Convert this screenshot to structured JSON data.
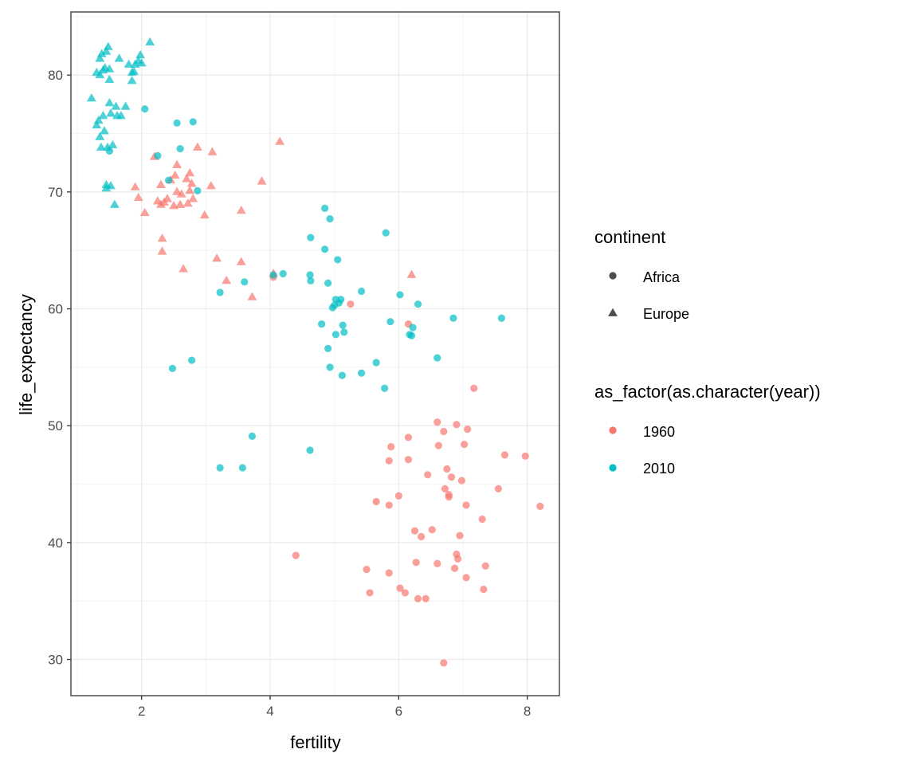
{
  "chart_data": {
    "type": "scatter",
    "xlabel": "fertility",
    "ylabel": "life_expectancy",
    "xlim": [
      0.9,
      8.5
    ],
    "ylim": [
      26.9,
      85.4
    ],
    "xticks": [
      2,
      4,
      6,
      8
    ],
    "yticks": [
      30,
      40,
      50,
      60,
      70,
      80
    ],
    "grid": true,
    "legend_position": "right",
    "legends": [
      {
        "title": "continent",
        "kind": "shape",
        "entries": [
          {
            "label": "Africa",
            "shape": "circle"
          },
          {
            "label": "Europe",
            "shape": "triangle"
          }
        ]
      },
      {
        "title": "as_factor(as.character(year))",
        "kind": "color",
        "entries": [
          {
            "label": "1960",
            "color": "#F8766D"
          },
          {
            "label": "2010",
            "color": "#00BFC4"
          }
        ]
      }
    ],
    "colors": {
      "1960": "#F8766D",
      "2010": "#00BFC4"
    },
    "series": [
      {
        "name": "1960",
        "continent": "Africa",
        "points": [
          [
            4.4,
            38.9
          ],
          [
            5.25,
            60.4
          ],
          [
            4.05,
            62.7
          ],
          [
            5.5,
            37.7
          ],
          [
            5.55,
            35.7
          ],
          [
            5.65,
            43.5
          ],
          [
            5.85,
            37.4
          ],
          [
            5.85,
            47.0
          ],
          [
            5.88,
            48.2
          ],
          [
            5.85,
            43.2
          ],
          [
            6.0,
            44.0
          ],
          [
            6.02,
            36.1
          ],
          [
            6.1,
            35.7
          ],
          [
            6.15,
            49.0
          ],
          [
            6.15,
            47.1
          ],
          [
            6.15,
            58.7
          ],
          [
            6.25,
            41.0
          ],
          [
            6.27,
            38.3
          ],
          [
            6.3,
            35.2
          ],
          [
            6.35,
            40.5
          ],
          [
            6.42,
            35.2
          ],
          [
            6.45,
            45.8
          ],
          [
            6.52,
            41.1
          ],
          [
            6.6,
            38.2
          ],
          [
            6.6,
            50.3
          ],
          [
            6.62,
            48.3
          ],
          [
            6.7,
            49.5
          ],
          [
            6.72,
            44.6
          ],
          [
            6.75,
            46.3
          ],
          [
            6.78,
            44.1
          ],
          [
            6.78,
            43.9
          ],
          [
            6.82,
            45.6
          ],
          [
            6.87,
            37.8
          ],
          [
            6.9,
            39.0
          ],
          [
            6.9,
            50.1
          ],
          [
            6.92,
            38.6
          ],
          [
            6.95,
            40.6
          ],
          [
            6.98,
            45.3
          ],
          [
            7.02,
            48.4
          ],
          [
            7.05,
            37.0
          ],
          [
            7.05,
            43.2
          ],
          [
            7.07,
            49.7
          ],
          [
            7.17,
            53.2
          ],
          [
            7.3,
            42.0
          ],
          [
            7.32,
            36.0
          ],
          [
            7.35,
            38.0
          ],
          [
            7.55,
            44.6
          ],
          [
            7.65,
            47.5
          ],
          [
            7.97,
            47.4
          ],
          [
            8.2,
            43.1
          ],
          [
            6.7,
            29.7
          ]
        ]
      },
      {
        "name": "1960",
        "continent": "Europe",
        "points": [
          [
            1.9,
            70.4
          ],
          [
            1.95,
            69.5
          ],
          [
            2.05,
            68.2
          ],
          [
            2.2,
            73.0
          ],
          [
            2.25,
            69.2
          ],
          [
            2.3,
            70.6
          ],
          [
            2.3,
            68.9
          ],
          [
            2.32,
            66.0
          ],
          [
            2.32,
            64.9
          ],
          [
            2.35,
            69.1
          ],
          [
            2.4,
            69.4
          ],
          [
            2.45,
            71.0
          ],
          [
            2.5,
            68.8
          ],
          [
            2.52,
            71.4
          ],
          [
            2.55,
            72.3
          ],
          [
            2.55,
            70.0
          ],
          [
            2.6,
            68.9
          ],
          [
            2.62,
            69.8
          ],
          [
            2.65,
            63.4
          ],
          [
            2.7,
            71.1
          ],
          [
            2.72,
            69.0
          ],
          [
            2.75,
            70.1
          ],
          [
            2.75,
            71.6
          ],
          [
            2.78,
            70.7
          ],
          [
            2.8,
            69.4
          ],
          [
            2.87,
            73.8
          ],
          [
            2.98,
            68.0
          ],
          [
            3.08,
            70.5
          ],
          [
            3.1,
            73.4
          ],
          [
            3.17,
            64.3
          ],
          [
            3.32,
            62.4
          ],
          [
            3.55,
            68.4
          ],
          [
            3.55,
            64.0
          ],
          [
            3.72,
            61.0
          ],
          [
            3.87,
            70.9
          ],
          [
            4.05,
            63.0
          ],
          [
            4.15,
            74.3
          ],
          [
            6.2,
            62.9
          ]
        ]
      },
      {
        "name": "2010",
        "continent": "Africa",
        "points": [
          [
            1.5,
            73.5
          ],
          [
            2.05,
            77.1
          ],
          [
            2.25,
            73.1
          ],
          [
            2.42,
            71.0
          ],
          [
            2.48,
            54.9
          ],
          [
            2.55,
            75.9
          ],
          [
            2.6,
            73.7
          ],
          [
            2.78,
            55.6
          ],
          [
            2.8,
            76.0
          ],
          [
            2.87,
            70.1
          ],
          [
            3.22,
            61.4
          ],
          [
            3.22,
            46.4
          ],
          [
            3.57,
            46.4
          ],
          [
            3.6,
            62.3
          ],
          [
            3.72,
            49.1
          ],
          [
            4.05,
            62.9
          ],
          [
            4.2,
            63.0
          ],
          [
            4.62,
            62.9
          ],
          [
            4.62,
            47.9
          ],
          [
            4.63,
            62.4
          ],
          [
            4.63,
            66.1
          ],
          [
            4.8,
            58.7
          ],
          [
            4.85,
            68.6
          ],
          [
            4.85,
            65.1
          ],
          [
            4.9,
            62.2
          ],
          [
            4.9,
            56.6
          ],
          [
            4.93,
            67.7
          ],
          [
            4.93,
            55.0
          ],
          [
            4.97,
            60.1
          ],
          [
            5.0,
            60.3
          ],
          [
            5.02,
            57.8
          ],
          [
            5.02,
            60.8
          ],
          [
            5.05,
            64.2
          ],
          [
            5.07,
            60.5
          ],
          [
            5.1,
            60.8
          ],
          [
            5.12,
            54.3
          ],
          [
            5.13,
            58.6
          ],
          [
            5.15,
            58.0
          ],
          [
            5.42,
            61.5
          ],
          [
            5.42,
            54.5
          ],
          [
            5.65,
            55.4
          ],
          [
            5.78,
            53.2
          ],
          [
            5.8,
            66.5
          ],
          [
            5.87,
            58.9
          ],
          [
            6.02,
            61.2
          ],
          [
            6.17,
            57.8
          ],
          [
            6.2,
            57.7
          ],
          [
            6.22,
            58.4
          ],
          [
            6.3,
            60.4
          ],
          [
            6.6,
            55.8
          ],
          [
            6.85,
            59.2
          ],
          [
            7.6,
            59.2
          ]
        ]
      },
      {
        "name": "2010",
        "continent": "Europe",
        "points": [
          [
            1.22,
            78.0
          ],
          [
            1.3,
            80.2
          ],
          [
            1.3,
            75.7
          ],
          [
            1.33,
            76.1
          ],
          [
            1.35,
            80.0
          ],
          [
            1.35,
            81.4
          ],
          [
            1.35,
            74.7
          ],
          [
            1.37,
            73.8
          ],
          [
            1.38,
            81.8
          ],
          [
            1.4,
            76.5
          ],
          [
            1.4,
            80.4
          ],
          [
            1.42,
            75.2
          ],
          [
            1.43,
            80.6
          ],
          [
            1.45,
            82.0
          ],
          [
            1.45,
            70.6
          ],
          [
            1.45,
            70.3
          ],
          [
            1.47,
            73.8
          ],
          [
            1.48,
            82.4
          ],
          [
            1.5,
            79.6
          ],
          [
            1.5,
            77.6
          ],
          [
            1.5,
            80.5
          ],
          [
            1.52,
            70.5
          ],
          [
            1.52,
            76.7
          ],
          [
            1.55,
            74.0
          ],
          [
            1.58,
            68.9
          ],
          [
            1.6,
            77.3
          ],
          [
            1.62,
            76.5
          ],
          [
            1.65,
            81.4
          ],
          [
            1.68,
            76.5
          ],
          [
            1.75,
            77.3
          ],
          [
            1.8,
            80.9
          ],
          [
            1.85,
            80.2
          ],
          [
            1.85,
            79.5
          ],
          [
            1.88,
            80.3
          ],
          [
            1.9,
            80.9
          ],
          [
            1.95,
            81.2
          ],
          [
            1.98,
            81.7
          ],
          [
            2.0,
            81.0
          ],
          [
            2.13,
            82.8
          ]
        ]
      }
    ]
  }
}
